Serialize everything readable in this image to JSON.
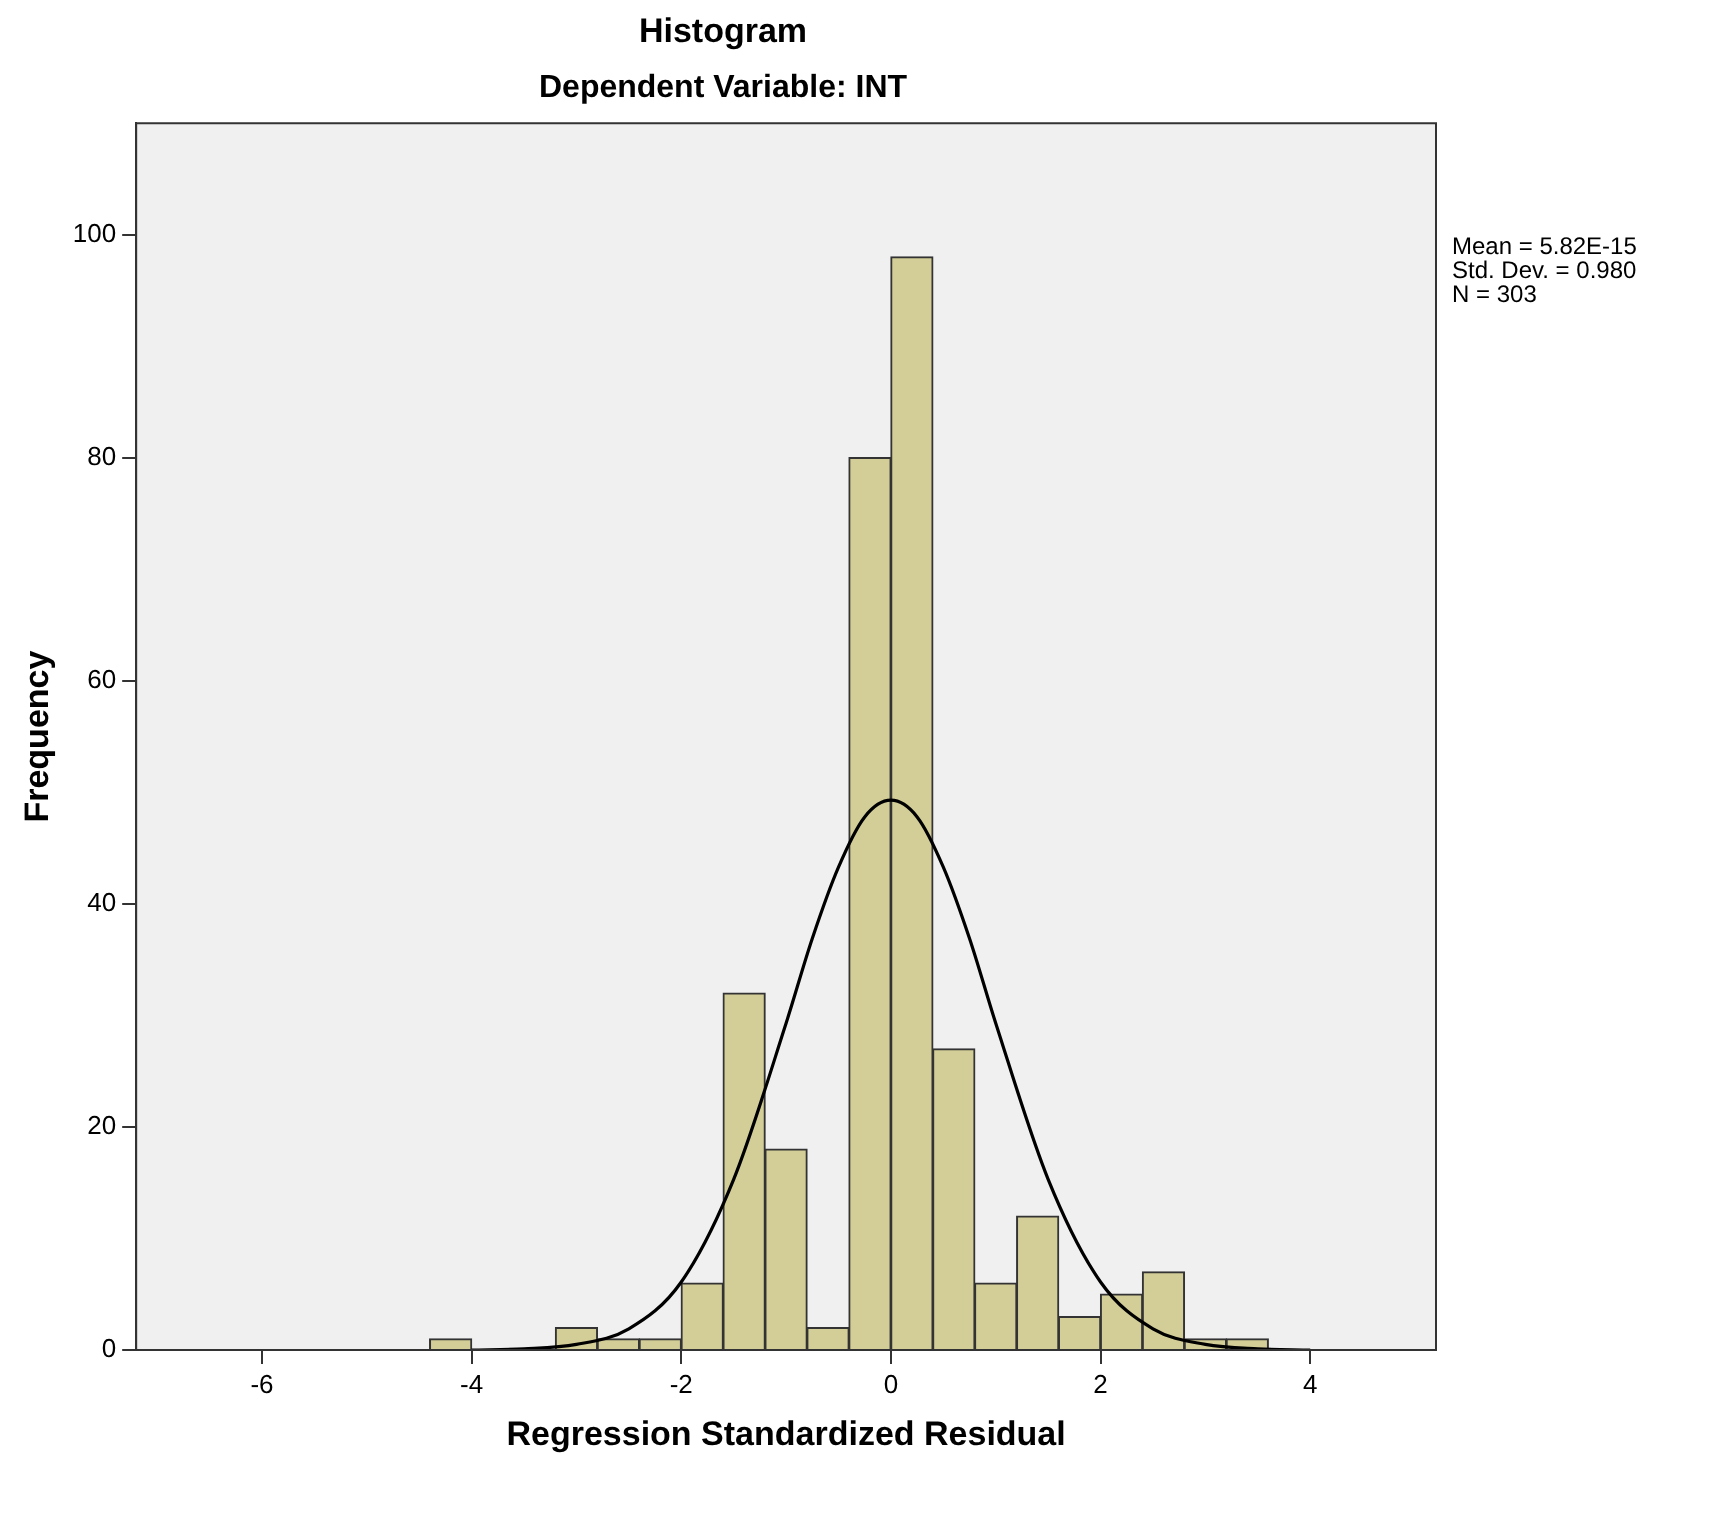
{
  "chart_data": {
    "type": "histogram",
    "title": "Histogram",
    "subtitle": "Dependent Variable: INT",
    "xlabel": "Regression Standardized Residual",
    "ylabel": "Frequency",
    "bins": [
      -4.4,
      -4.0,
      -3.6,
      -3.2,
      -2.8,
      -2.4,
      -2.0,
      -1.6,
      -1.2,
      -0.8,
      -0.4,
      0,
      0.4,
      0.8,
      1.2,
      1.6,
      2.0,
      2.4,
      2.8,
      3.2,
      3.6
    ],
    "values": [
      1,
      0,
      0,
      2,
      1,
      1,
      6,
      32,
      18,
      2,
      80,
      98,
      27,
      6,
      12,
      3,
      5,
      7,
      1,
      1
    ],
    "color": "#d3ce97",
    "series": [
      {
        "type": "line",
        "color": "#000000",
        "marker": "none",
        "x": [
          -4,
          -3.5,
          -3,
          -2.5,
          -2,
          -1.5,
          -1,
          -0.75,
          -0.5,
          -0.25,
          0,
          0.25,
          0.5,
          0.75,
          1,
          1.5,
          2,
          2.5,
          3,
          3.5,
          4
        ],
        "values": [
          0,
          0.1,
          0.5,
          1.9,
          6.1,
          15.3,
          29.3,
          36.9,
          43.3,
          47.8,
          49.3,
          47.8,
          43.3,
          36.9,
          29.3,
          15.3,
          6.1,
          1.9,
          0.5,
          0.1,
          0
        ]
      }
    ],
    "xlim": [
      -7.2,
      5.2
    ],
    "xticks": [
      -6,
      -4,
      -2,
      0,
      2,
      4
    ],
    "ylim": [
      0,
      110
    ],
    "yticks": [
      0,
      20,
      40,
      60,
      80,
      100
    ],
    "grid": false,
    "legend": false,
    "annotations": [
      "Mean = 5.82E-15",
      "Std. Dev. = 0.980",
      "N = 303"
    ]
  }
}
